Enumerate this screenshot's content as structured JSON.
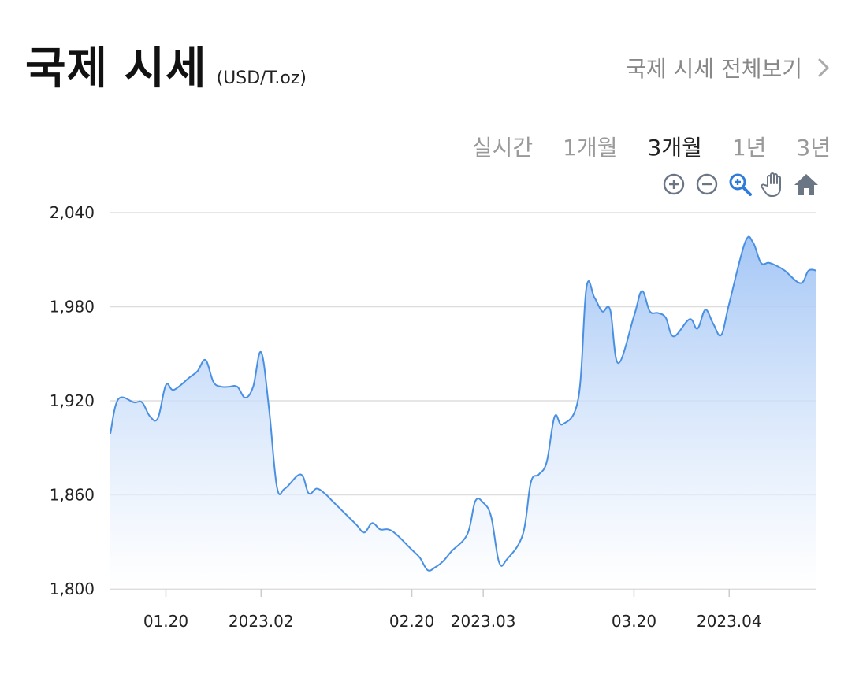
{
  "header": {
    "title": "국제 시세",
    "unit": "(USD/T.oz)",
    "view_all": "국제 시세 전체보기"
  },
  "tabs": [
    {
      "label": "실시간",
      "active": false
    },
    {
      "label": "1개월",
      "active": false
    },
    {
      "label": "3개월",
      "active": true
    },
    {
      "label": "1년",
      "active": false
    },
    {
      "label": "3년",
      "active": false
    }
  ],
  "toolbar": {
    "icons": [
      "zoom-in-icon",
      "zoom-out-icon",
      "zoom-select-icon",
      "pan-hand-icon",
      "home-reset-icon"
    ],
    "active_icon_color": "#2f7bd9",
    "icon_color": "#6b7685"
  },
  "colors": {
    "line": "#4a90e2",
    "fill_top": "#9fc3f5",
    "fill_bottom": "#ffffff",
    "grid": "#dddddd"
  },
  "chart_data": {
    "type": "area",
    "ylim": [
      1800,
      2040
    ],
    "yticks": [
      "1,800",
      "1,860",
      "1,920",
      "1,980",
      "2,040"
    ],
    "xticks": [
      "01.20",
      "2023.02",
      "02.20",
      "2023.03",
      "03.20",
      "2023.04"
    ],
    "xtick_values": [
      "2023-01-20",
      "2023-02-01",
      "2023-02-20",
      "2023-03-01",
      "2023-03-20",
      "2023-04-01"
    ],
    "x": [
      "2023-01-13",
      "2023-01-14",
      "2023-01-16",
      "2023-01-17",
      "2023-01-18",
      "2023-01-19",
      "2023-01-20",
      "2023-01-21",
      "2023-01-23",
      "2023-01-24",
      "2023-01-25",
      "2023-01-26",
      "2023-01-27",
      "2023-01-28",
      "2023-01-29",
      "2023-01-30",
      "2023-01-31",
      "2023-02-01",
      "2023-02-02",
      "2023-02-03",
      "2023-02-04",
      "2023-02-06",
      "2023-02-07",
      "2023-02-08",
      "2023-02-09",
      "2023-02-10",
      "2023-02-11",
      "2023-02-13",
      "2023-02-14",
      "2023-02-15",
      "2023-02-16",
      "2023-02-17",
      "2023-02-18",
      "2023-02-20",
      "2023-02-21",
      "2023-02-22",
      "2023-02-23",
      "2023-02-24",
      "2023-02-25",
      "2023-02-27",
      "2023-02-28",
      "2023-03-01",
      "2023-03-02",
      "2023-03-03",
      "2023-03-04",
      "2023-03-06",
      "2023-03-07",
      "2023-03-08",
      "2023-03-09",
      "2023-03-10",
      "2023-03-11",
      "2023-03-13",
      "2023-03-14",
      "2023-03-15",
      "2023-03-16",
      "2023-03-17",
      "2023-03-18",
      "2023-03-20",
      "2023-03-21",
      "2023-03-22",
      "2023-03-23",
      "2023-03-24",
      "2023-03-25",
      "2023-03-27",
      "2023-03-28",
      "2023-03-29",
      "2023-03-30",
      "2023-03-31",
      "2023-04-01",
      "2023-04-03",
      "2023-04-04",
      "2023-04-05",
      "2023-04-06",
      "2023-04-07",
      "2023-04-08",
      "2023-04-10",
      "2023-04-11",
      "2023-04-12"
    ],
    "values": [
      1899,
      1921,
      1919,
      1919,
      1910,
      1909,
      1930,
      1927,
      1935,
      1939,
      1946,
      1932,
      1929,
      1929,
      1929,
      1922,
      1929,
      1951,
      1915,
      1865,
      1864,
      1873,
      1861,
      1864,
      1861,
      1856,
      1851,
      1841,
      1836,
      1842,
      1838,
      1838,
      1835,
      1825,
      1820,
      1812,
      1814,
      1818,
      1824,
      1835,
      1856,
      1855,
      1846,
      1817,
      1819,
      1835,
      1868,
      1873,
      1881,
      1910,
      1905,
      1922,
      1992,
      1986,
      1977,
      1978,
      1944,
      1974,
      1990,
      1977,
      1976,
      1973,
      1961,
      1972,
      1966,
      1978,
      1969,
      1962,
      1982,
      2021,
      2021,
      2008,
      2008,
      2006,
      2003,
      1995,
      2003,
      2003
    ]
  }
}
